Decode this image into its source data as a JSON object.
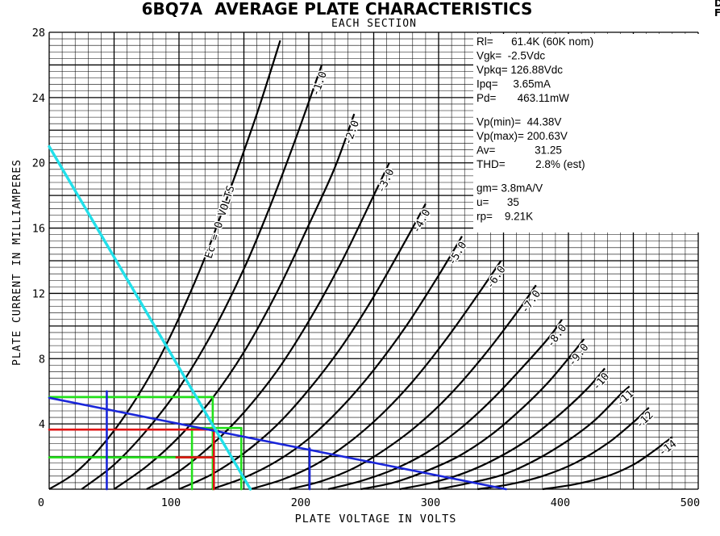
{
  "chart_data": {
    "type": "line",
    "title_tube": "6BQ7A",
    "title_rest": "AVERAGE PLATE CHARACTERISTICS",
    "subtitle": "EACH SECTION",
    "corner_text_1": "D",
    "corner_text_2": "F",
    "xlabel": "PLATE VOLTAGE IN VOLTS",
    "ylabel": "PLATE CURRENT IN MILLIAMPERES",
    "xlim": [
      0,
      500
    ],
    "ylim": [
      0,
      28
    ],
    "x_ticks": [
      "0",
      "100",
      "200",
      "300",
      "400",
      "500"
    ],
    "y_ticks": [
      "4",
      "8",
      "12",
      "16",
      "20",
      "24",
      "28"
    ],
    "grid": true,
    "series": [
      {
        "name": "Ec = 0 VOLTS",
        "points": [
          [
            0,
            0
          ],
          [
            20,
            1
          ],
          [
            40,
            2.6
          ],
          [
            60,
            4.7
          ],
          [
            80,
            7.3
          ],
          [
            100,
            10.5
          ],
          [
            120,
            14.2
          ],
          [
            140,
            18.5
          ],
          [
            160,
            23
          ],
          [
            178,
            27.5
          ]
        ]
      },
      {
        "name": "-1.0",
        "points": [
          [
            25,
            0
          ],
          [
            50,
            1.5
          ],
          [
            75,
            3.6
          ],
          [
            100,
            6.2
          ],
          [
            125,
            9.5
          ],
          [
            150,
            13.5
          ],
          [
            170,
            17.3
          ],
          [
            190,
            21.5
          ],
          [
            210,
            26
          ]
        ]
      },
      {
        "name": "-2.0",
        "points": [
          [
            50,
            0
          ],
          [
            75,
            1.4
          ],
          [
            100,
            3.2
          ],
          [
            125,
            5.5
          ],
          [
            150,
            8.4
          ],
          [
            175,
            12
          ],
          [
            200,
            16.2
          ],
          [
            220,
            19.7
          ],
          [
            235,
            23
          ]
        ]
      },
      {
        "name": "-3.0",
        "points": [
          [
            75,
            0
          ],
          [
            100,
            1.1
          ],
          [
            125,
            2.7
          ],
          [
            150,
            4.7
          ],
          [
            175,
            7.2
          ],
          [
            200,
            10.3
          ],
          [
            225,
            13.9
          ],
          [
            250,
            18
          ],
          [
            262,
            20
          ]
        ]
      },
      {
        "name": "-4.0",
        "points": [
          [
            100,
            0
          ],
          [
            125,
            0.9
          ],
          [
            150,
            2.2
          ],
          [
            175,
            3.9
          ],
          [
            200,
            6.1
          ],
          [
            225,
            8.7
          ],
          [
            250,
            11.8
          ],
          [
            275,
            15.3
          ],
          [
            290,
            17.5
          ]
        ]
      },
      {
        "name": "-5.0",
        "points": [
          [
            125,
            0
          ],
          [
            150,
            0.7
          ],
          [
            175,
            1.7
          ],
          [
            200,
            3.1
          ],
          [
            225,
            5
          ],
          [
            250,
            7.3
          ],
          [
            275,
            10
          ],
          [
            300,
            13.1
          ],
          [
            318,
            15.5
          ]
        ]
      },
      {
        "name": "-6.0",
        "points": [
          [
            155,
            0
          ],
          [
            180,
            0.6
          ],
          [
            205,
            1.5
          ],
          [
            230,
            2.8
          ],
          [
            255,
            4.5
          ],
          [
            280,
            6.6
          ],
          [
            305,
            9.1
          ],
          [
            330,
            11.9
          ],
          [
            348,
            14
          ]
        ]
      },
      {
        "name": "-7.0",
        "points": [
          [
            185,
            0
          ],
          [
            210,
            0.5
          ],
          [
            235,
            1.3
          ],
          [
            260,
            2.5
          ],
          [
            285,
            4
          ],
          [
            310,
            5.9
          ],
          [
            335,
            8.2
          ],
          [
            360,
            10.8
          ],
          [
            375,
            12.5
          ]
        ]
      },
      {
        "name": "-8.0",
        "points": [
          [
            215,
            0
          ],
          [
            240,
            0.5
          ],
          [
            265,
            1.2
          ],
          [
            290,
            2.2
          ],
          [
            315,
            3.6
          ],
          [
            340,
            5.4
          ],
          [
            365,
            7.5
          ],
          [
            385,
            9.3
          ],
          [
            395,
            10.4
          ]
        ]
      },
      {
        "name": "-9.0",
        "points": [
          [
            240,
            0
          ],
          [
            265,
            0.4
          ],
          [
            290,
            1.1
          ],
          [
            315,
            2
          ],
          [
            340,
            3.3
          ],
          [
            365,
            5
          ],
          [
            385,
            6.6
          ],
          [
            405,
            8.5
          ],
          [
            412,
            9.2
          ]
        ]
      },
      {
        "name": "-10",
        "points": [
          [
            270,
            0
          ],
          [
            295,
            0.4
          ],
          [
            320,
            1
          ],
          [
            345,
            1.9
          ],
          [
            370,
            3.1
          ],
          [
            395,
            4.7
          ],
          [
            415,
            6.2
          ],
          [
            428,
            7.4
          ]
        ]
      },
      {
        "name": "-11",
        "points": [
          [
            300,
            0
          ],
          [
            325,
            0.4
          ],
          [
            350,
            0.9
          ],
          [
            375,
            1.8
          ],
          [
            400,
            3
          ],
          [
            420,
            4.2
          ],
          [
            440,
            5.8
          ],
          [
            447,
            6.3
          ]
        ]
      },
      {
        "name": "-12",
        "points": [
          [
            330,
            0
          ],
          [
            355,
            0.3
          ],
          [
            380,
            0.8
          ],
          [
            405,
            1.6
          ],
          [
            430,
            2.8
          ],
          [
            450,
            4.1
          ],
          [
            462,
            5
          ]
        ]
      },
      {
        "name": "-14",
        "points": [
          [
            380,
            0
          ],
          [
            405,
            0.3
          ],
          [
            430,
            0.8
          ],
          [
            450,
            1.5
          ],
          [
            465,
            2.3
          ],
          [
            480,
            3.2
          ]
        ]
      }
    ],
    "annotations": {
      "cyan_load_line": [
        [
          0,
          21
        ],
        [
          155,
          0
        ]
      ],
      "blue_load_line": [
        [
          0,
          5.6
        ],
        [
          352,
          0
        ]
      ],
      "blue_vertical_44": [
        [
          44.38,
          0
        ],
        [
          44.38,
          6
        ]
      ],
      "blue_vertical_200": [
        [
          200.63,
          0
        ],
        [
          200.63,
          2.5
        ]
      ],
      "green_h_high": [
        [
          0,
          5.65
        ],
        [
          126,
          5.65
        ]
      ],
      "green_v_high": [
        [
          126,
          0
        ],
        [
          126,
          5.65
        ]
      ],
      "green_h_low": [
        [
          0,
          1.95
        ],
        [
          126,
          1.95
        ]
      ],
      "green_box_h": [
        [
          110,
          3.75
        ],
        [
          148,
          3.75
        ]
      ],
      "green_v_110": [
        [
          110,
          0
        ],
        [
          110,
          3.75
        ]
      ],
      "green_v_148": [
        [
          148,
          0
        ],
        [
          148,
          3.75
        ]
      ],
      "red_h": [
        [
          0,
          3.65
        ],
        [
          126.88,
          3.65
        ]
      ],
      "red_v": [
        [
          126.88,
          0
        ],
        [
          126.88,
          3.65
        ]
      ],
      "red_short": [
        [
          98,
          1.95
        ],
        [
          126,
          1.95
        ]
      ]
    },
    "colors": {
      "curve": "#000000",
      "grid": "#000000",
      "cyan": "#22e0ea",
      "blue": "#1a26d9",
      "green": "#22e11a",
      "red": "#e01414"
    }
  },
  "info": {
    "block1": [
      "Rl=      61.4K (60K nom)",
      "Vgk=  -2.5Vdc",
      "Vpkq= 126.88Vdc",
      "Ipq=     3.65mA",
      "Pd=       463.11mW"
    ],
    "block2": [
      "Vp(min)=  44.38V",
      "Vp(max)= 200.63V",
      "Av=             31.25",
      "THD=          2.8% (est)"
    ],
    "block3": [
      "gm= 3.8mA/V",
      "u=      35",
      "rp=    9.21K"
    ]
  }
}
